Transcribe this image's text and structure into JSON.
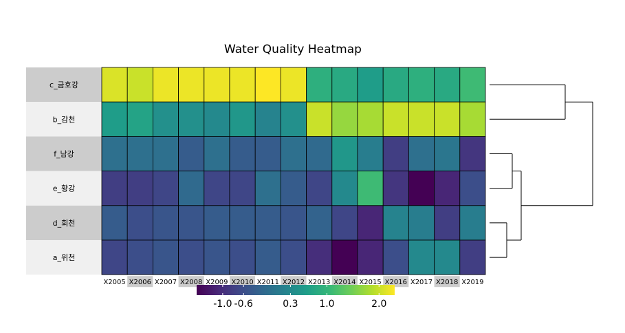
{
  "chart_data": {
    "type": "heatmap",
    "title": "Water Quality Heatmap",
    "rows": [
      "c_금호강",
      "b_감천",
      "f_남강",
      "e_황강",
      "d_회천",
      "a_위천"
    ],
    "columns": [
      "X2005",
      "X2006",
      "X2007",
      "X2008",
      "X2009",
      "X2010",
      "X2011",
      "X2012",
      "X2013",
      "X2014",
      "X2015",
      "X2016",
      "X2017",
      "X2018",
      "X2019"
    ],
    "values": [
      [
        2.1,
        2.0,
        2.2,
        2.2,
        2.2,
        2.2,
        2.3,
        2.2,
        0.9,
        0.8,
        0.6,
        0.8,
        0.9,
        0.8,
        1.1
      ],
      [
        0.6,
        0.7,
        0.4,
        0.4,
        0.3,
        0.5,
        0.2,
        0.4,
        2.0,
        1.7,
        1.8,
        2.0,
        2.0,
        2.0,
        1.8
      ],
      [
        -0.1,
        -0.1,
        -0.1,
        -0.4,
        -0.1,
        -0.4,
        -0.4,
        -0.1,
        -0.2,
        0.5,
        0.1,
        -0.8,
        -0.1,
        0.0,
        -0.9
      ],
      [
        -0.8,
        -0.8,
        -0.7,
        -0.2,
        -0.7,
        -0.7,
        -0.1,
        -0.4,
        -0.7,
        0.3,
        1.1,
        -0.9,
        -1.5,
        -1.1,
        -0.6
      ],
      [
        -0.4,
        -0.6,
        -0.5,
        -0.5,
        -0.4,
        -0.4,
        -0.4,
        -0.5,
        -0.3,
        -0.7,
        -1.1,
        0.2,
        0.1,
        -0.8,
        0.1
      ],
      [
        -0.7,
        -0.6,
        -0.5,
        -0.6,
        -0.5,
        -0.6,
        -0.4,
        -0.6,
        -1.0,
        -1.6,
        -1.1,
        -0.6,
        0.3,
        0.3,
        -0.8
      ]
    ],
    "color_scale": {
      "palette": "viridis",
      "range": [
        -1.5,
        2.3
      ],
      "ticks": [
        -1.0,
        -0.6,
        0.3,
        1.0,
        2.0
      ],
      "tick_labels": [
        "-1.0",
        "-0.6",
        "0.3",
        "1.0",
        "2.0"
      ],
      "colors": [
        "#440154",
        "#482878",
        "#3E4A89",
        "#31688E",
        "#26828E",
        "#1F9E89",
        "#35B779",
        "#6DCD59",
        "#B4DE2C",
        "#FDE725"
      ]
    },
    "row_dendrogram": true,
    "legend_position": "bottom",
    "row_label_stripes": [
      "#cccccc",
      "#f0f0f0"
    ],
    "col_label_stripes": [
      "#ffffff",
      "#cccccc"
    ]
  }
}
